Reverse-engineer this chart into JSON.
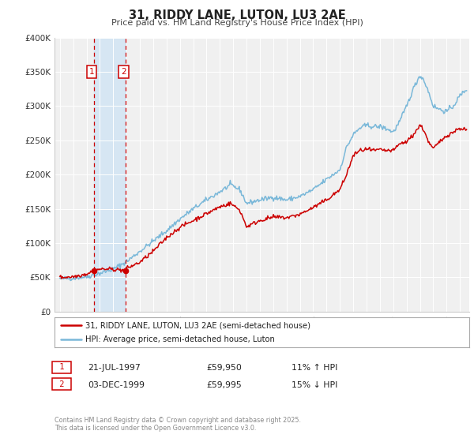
{
  "title": "31, RIDDY LANE, LUTON, LU3 2AE",
  "subtitle": "Price paid vs. HM Land Registry's House Price Index (HPI)",
  "background_color": "#ffffff",
  "plot_background_color": "#f0f0f0",
  "ylim": [
    0,
    400000
  ],
  "yticks": [
    0,
    50000,
    100000,
    150000,
    200000,
    250000,
    300000,
    350000,
    400000
  ],
  "ytick_labels": [
    "£0",
    "£50K",
    "£100K",
    "£150K",
    "£200K",
    "£250K",
    "£300K",
    "£350K",
    "£400K"
  ],
  "legend_entries": [
    "31, RIDDY LANE, LUTON, LU3 2AE (semi-detached house)",
    "HPI: Average price, semi-detached house, Luton"
  ],
  "legend_colors": [
    "#cc0000",
    "#7ab8d9"
  ],
  "transaction1": {
    "label": "1",
    "date": "21-JUL-1997",
    "price": "£59,950",
    "hpi": "11% ↑ HPI"
  },
  "transaction2": {
    "label": "2",
    "date": "03-DEC-1999",
    "price": "£59,995",
    "hpi": "15% ↓ HPI"
  },
  "footer1": "Contains HM Land Registry data © Crown copyright and database right 2025.",
  "footer2": "This data is licensed under the Open Government Licence v3.0.",
  "vline1_x": 1997.54,
  "vline2_x": 1999.92,
  "marker1_y": 59950,
  "marker2_y": 59995,
  "shade_x1": 1997.54,
  "shade_x2": 1999.92,
  "xlim_left": 1994.6,
  "xlim_right": 2025.7
}
